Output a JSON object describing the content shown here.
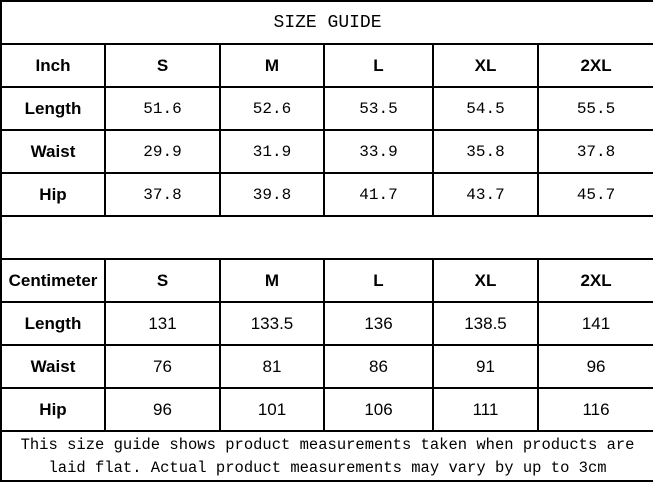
{
  "title": "SIZE GUIDE",
  "sizes": [
    "S",
    "M",
    "L",
    "XL",
    "2XL"
  ],
  "inch": {
    "unit_label": "Inch",
    "rows": [
      {
        "label": "Length",
        "values": [
          "51.6",
          "52.6",
          "53.5",
          "54.5",
          "55.5"
        ]
      },
      {
        "label": "Waist",
        "values": [
          "29.9",
          "31.9",
          "33.9",
          "35.8",
          "37.8"
        ]
      },
      {
        "label": "Hip",
        "values": [
          "37.8",
          "39.8",
          "41.7",
          "43.7",
          "45.7"
        ]
      }
    ]
  },
  "centimeter": {
    "unit_label": "Centimeter",
    "rows": [
      {
        "label": "Length",
        "values": [
          "131",
          "133.5",
          "136",
          "138.5",
          "141"
        ]
      },
      {
        "label": "Waist",
        "values": [
          "76",
          "81",
          "86",
          "91",
          "96"
        ]
      },
      {
        "label": "Hip",
        "values": [
          "96",
          "101",
          "106",
          "111",
          "116"
        ]
      }
    ]
  },
  "note": "This size guide shows product measurements taken when products are laid flat. Actual product measurements may vary by up to 3cm"
}
